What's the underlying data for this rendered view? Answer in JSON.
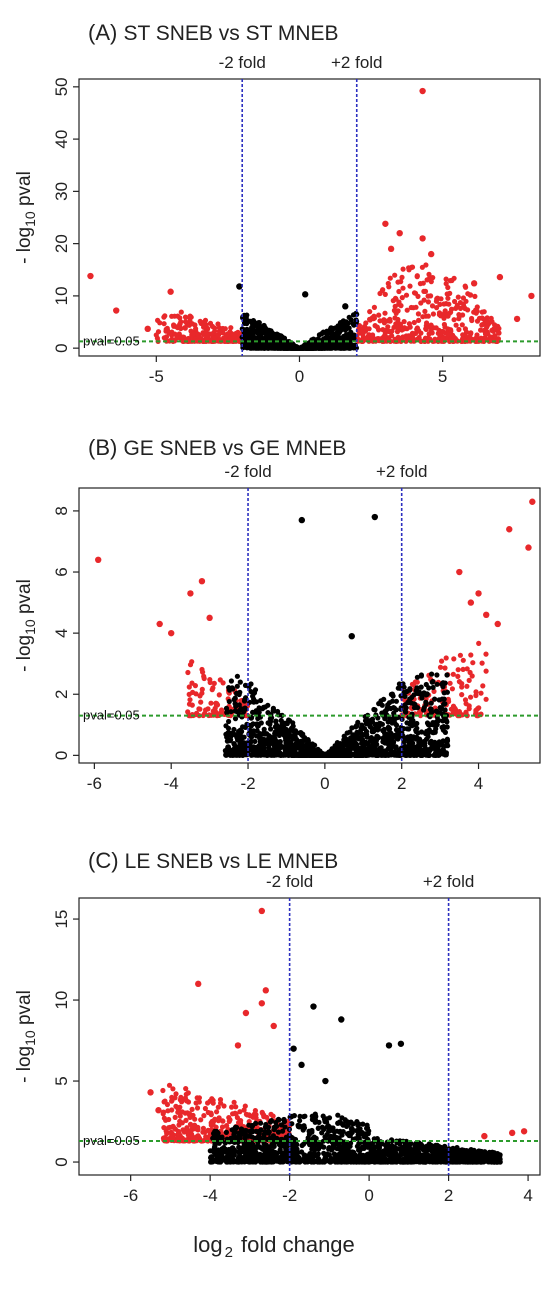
{
  "xlabel": {
    "main": "log",
    "sub": "2",
    "rest": " fold change"
  },
  "ylabel": {
    "prefix": "- log",
    "sub": "10",
    "suffix": " pval"
  },
  "pval_label": "pval=0.05",
  "fold_labels": {
    "minus": "-2 fold",
    "plus": "+2 fold"
  },
  "colors": {
    "significant": "#e8282b",
    "nonsignificant": "#000000",
    "threshold": "#2c9b2c",
    "fold_lines": "#2c2fc0"
  },
  "chart_data": [
    {
      "type": "scatter",
      "tag": "(A)",
      "title": "ST SNEB vs ST MNEB",
      "xlim": [
        -7.7,
        8.4
      ],
      "ylim": [
        -1.5,
        51.5
      ],
      "xticks": [
        -5,
        0,
        5
      ],
      "yticks": [
        0,
        10,
        20,
        30,
        40,
        50
      ],
      "pval_threshold": 1.3,
      "fold_lines": [
        -2,
        2
      ],
      "highlight_points": [
        {
          "x": 4.3,
          "y": 49.2,
          "sig": true
        },
        {
          "x": 3.0,
          "y": 23.8,
          "sig": true
        },
        {
          "x": 3.5,
          "y": 22.0,
          "sig": true
        },
        {
          "x": 4.3,
          "y": 21.0,
          "sig": true
        },
        {
          "x": 3.2,
          "y": 19.0,
          "sig": true
        },
        {
          "x": 4.6,
          "y": 18.0,
          "sig": true
        },
        {
          "x": -7.3,
          "y": 13.8,
          "sig": true
        },
        {
          "x": 7.0,
          "y": 13.6,
          "sig": true
        },
        {
          "x": 6.1,
          "y": 12.4,
          "sig": true
        },
        {
          "x": -4.5,
          "y": 10.8,
          "sig": true
        },
        {
          "x": 8.1,
          "y": 10.0,
          "sig": true
        },
        {
          "x": -6.4,
          "y": 7.2,
          "sig": true
        },
        {
          "x": 6.6,
          "y": 4.8,
          "sig": true
        },
        {
          "x": 7.6,
          "y": 5.6,
          "sig": true
        },
        {
          "x": -5.3,
          "y": 3.7,
          "sig": true
        },
        {
          "x": 0.2,
          "y": 10.3,
          "sig": false
        },
        {
          "x": -2.1,
          "y": 11.8,
          "sig": false
        },
        {
          "x": 1.6,
          "y": 8.0,
          "sig": false
        }
      ],
      "clouds": [
        {
          "xmin": -5.0,
          "xmax": -2.0,
          "ybase": 1.3,
          "yspread": 7.0,
          "n": 220,
          "shape": "rising_left",
          "sig": true
        },
        {
          "xmin": 2.0,
          "xmax": 7.0,
          "ybase": 1.3,
          "yspread": 15.0,
          "n": 420,
          "shape": "hump",
          "sig": true
        },
        {
          "xmin": -2.0,
          "xmax": 2.0,
          "ybase": 0.0,
          "yspread": 8.0,
          "n": 900,
          "shape": "vshape",
          "sig": false
        }
      ]
    },
    {
      "type": "scatter",
      "tag": "(B)",
      "title": "GE SNEB vs GE MNEB",
      "xlim": [
        -6.4,
        5.6
      ],
      "ylim": [
        -0.25,
        8.75
      ],
      "xticks": [
        -6,
        -4,
        -2,
        0,
        2,
        4
      ],
      "yticks": [
        0,
        2,
        4,
        6,
        8
      ],
      "pval_threshold": 1.3,
      "fold_lines": [
        -2,
        2
      ],
      "highlight_points": [
        {
          "x": -5.9,
          "y": 6.4,
          "sig": true
        },
        {
          "x": -3.2,
          "y": 5.7,
          "sig": true
        },
        {
          "x": -3.5,
          "y": 5.3,
          "sig": true
        },
        {
          "x": -3.0,
          "y": 4.5,
          "sig": true
        },
        {
          "x": -4.3,
          "y": 4.3,
          "sig": true
        },
        {
          "x": -4.0,
          "y": 4.0,
          "sig": true
        },
        {
          "x": 5.4,
          "y": 8.3,
          "sig": true
        },
        {
          "x": 4.8,
          "y": 7.4,
          "sig": true
        },
        {
          "x": 5.3,
          "y": 6.8,
          "sig": true
        },
        {
          "x": 3.5,
          "y": 6.0,
          "sig": true
        },
        {
          "x": 4.0,
          "y": 5.3,
          "sig": true
        },
        {
          "x": 3.8,
          "y": 5.0,
          "sig": true
        },
        {
          "x": 4.2,
          "y": 4.6,
          "sig": true
        },
        {
          "x": 4.5,
          "y": 4.3,
          "sig": true
        },
        {
          "x": -0.6,
          "y": 7.7,
          "sig": false
        },
        {
          "x": 1.3,
          "y": 7.8,
          "sig": false
        },
        {
          "x": 0.7,
          "y": 3.9,
          "sig": false
        }
      ],
      "clouds": [
        {
          "xmin": -3.6,
          "xmax": -2.0,
          "ybase": 1.3,
          "yspread": 1.9,
          "n": 110,
          "shape": "rising_left",
          "sig": true
        },
        {
          "xmin": 2.0,
          "xmax": 4.2,
          "ybase": 1.3,
          "yspread": 2.8,
          "n": 140,
          "shape": "rising_right",
          "sig": true
        },
        {
          "xmin": -2.6,
          "xmax": 3.2,
          "ybase": 0.0,
          "yspread": 2.8,
          "n": 1400,
          "shape": "vshape",
          "sig": false
        }
      ]
    },
    {
      "type": "scatter",
      "tag": "(C)",
      "title": "LE SNEB vs LE MNEB",
      "xlim": [
        -7.3,
        4.3
      ],
      "ylim": [
        -0.8,
        16.3
      ],
      "xticks": [
        -6,
        -4,
        -2,
        0,
        2,
        4
      ],
      "yticks": [
        0,
        5,
        10,
        15
      ],
      "pval_threshold": 1.3,
      "fold_lines": [
        -2,
        2
      ],
      "highlight_points": [
        {
          "x": -2.7,
          "y": 15.5,
          "sig": true
        },
        {
          "x": -4.3,
          "y": 11.0,
          "sig": true
        },
        {
          "x": -2.6,
          "y": 10.6,
          "sig": true
        },
        {
          "x": -2.7,
          "y": 9.8,
          "sig": true
        },
        {
          "x": -3.1,
          "y": 9.2,
          "sig": true
        },
        {
          "x": -2.4,
          "y": 8.4,
          "sig": true
        },
        {
          "x": -3.3,
          "y": 7.2,
          "sig": true
        },
        {
          "x": -5.5,
          "y": 4.3,
          "sig": true
        },
        {
          "x": -5.3,
          "y": 3.2,
          "sig": true
        },
        {
          "x": 3.6,
          "y": 1.8,
          "sig": true
        },
        {
          "x": 3.9,
          "y": 1.9,
          "sig": true
        },
        {
          "x": 2.9,
          "y": 1.6,
          "sig": true
        },
        {
          "x": -1.4,
          "y": 9.6,
          "sig": false
        },
        {
          "x": -0.7,
          "y": 8.8,
          "sig": false
        },
        {
          "x": 0.5,
          "y": 7.2,
          "sig": false
        },
        {
          "x": -1.9,
          "y": 7.0,
          "sig": false
        },
        {
          "x": 0.8,
          "y": 7.3,
          "sig": false
        },
        {
          "x": -1.7,
          "y": 6.0,
          "sig": false
        },
        {
          "x": -1.1,
          "y": 5.0,
          "sig": false
        }
      ],
      "clouds": [
        {
          "xmin": -5.2,
          "xmax": -2.0,
          "ybase": 1.3,
          "yspread": 3.8,
          "n": 420,
          "shape": "rising_left",
          "sig": true
        },
        {
          "xmin": -4.0,
          "xmax": 3.3,
          "ybase": 0.0,
          "yspread": 3.2,
          "n": 1700,
          "shape": "left_heavy",
          "sig": false
        }
      ]
    }
  ]
}
